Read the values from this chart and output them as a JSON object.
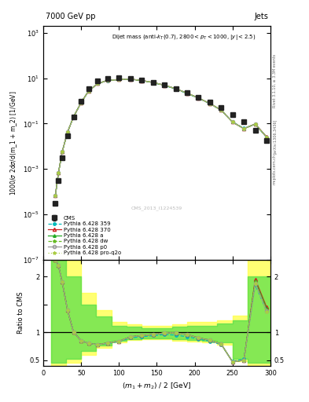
{
  "title_left": "7000 GeV pp",
  "title_right": "Jets",
  "annotation": "Dijet mass (anti-k_{T}(0.7), 2800<p_{T}<1000, |y|<2.5)",
  "xlabel": "(m_1 + m_2) / 2 [GeV]",
  "ylabel_top": "1000/σ 2dσ/d(m_1 + m_2) [1/GeV]",
  "ylabel_bottom": "Ratio to CMS",
  "watermark": "CMS_2013_I1224539",
  "xlim": [
    0,
    300
  ],
  "color_cms": "#222222",
  "color_p359": "#00bbbb",
  "color_p370": "#cc2222",
  "color_pa": "#22aa22",
  "color_pdw": "#66bb22",
  "color_pp0": "#999999",
  "color_pproq2o": "#aacc44",
  "legend_labels": [
    "CMS",
    "Pythia 6.428 359",
    "Pythia 6.428 370",
    "Pythia 6.428 a",
    "Pythia 6.428 dw",
    "Pythia 6.428 p0",
    "Pythia 6.428 pro-q2o"
  ],
  "x": [
    16,
    20,
    25,
    32,
    40,
    50,
    60,
    72,
    85,
    100,
    115,
    130,
    145,
    160,
    175,
    190,
    205,
    220,
    235,
    250,
    265,
    280,
    295
  ],
  "cms_y": [
    3e-05,
    0.0003,
    0.003,
    0.03,
    0.2,
    1.0,
    3.5,
    7.5,
    10.0,
    10.5,
    10.0,
    8.5,
    6.8,
    5.0,
    3.5,
    2.3,
    1.5,
    0.9,
    0.5,
    0.25,
    0.12,
    0.05,
    0.018
  ],
  "ratio_p359": [
    2.3,
    2.2,
    1.9,
    1.4,
    1.0,
    0.85,
    0.8,
    0.78,
    0.8,
    0.83,
    0.9,
    0.92,
    0.94,
    0.96,
    0.95,
    0.92,
    0.88,
    0.84,
    0.78,
    0.48,
    0.52,
    1.85,
    1.38
  ],
  "ratio_p370": [
    2.3,
    2.2,
    1.9,
    1.4,
    1.0,
    0.85,
    0.8,
    0.78,
    0.81,
    0.84,
    0.92,
    0.94,
    0.96,
    0.99,
    0.99,
    0.96,
    0.9,
    0.86,
    0.79,
    0.47,
    0.5,
    1.95,
    1.45
  ],
  "ratio_pa": [
    2.3,
    2.2,
    1.9,
    1.4,
    1.0,
    0.85,
    0.8,
    0.78,
    0.81,
    0.84,
    0.92,
    0.94,
    0.96,
    0.99,
    0.99,
    0.96,
    0.9,
    0.86,
    0.79,
    0.47,
    0.5,
    1.92,
    1.42
  ],
  "ratio_pdw": [
    2.3,
    2.2,
    1.9,
    1.4,
    1.0,
    0.85,
    0.8,
    0.78,
    0.81,
    0.84,
    0.92,
    0.94,
    0.96,
    0.99,
    0.99,
    0.96,
    0.9,
    0.86,
    0.79,
    0.47,
    0.5,
    1.9,
    1.4
  ],
  "ratio_pp0": [
    2.3,
    2.2,
    1.9,
    1.4,
    1.0,
    0.85,
    0.8,
    0.78,
    0.81,
    0.84,
    0.92,
    0.94,
    0.96,
    0.99,
    0.99,
    0.96,
    0.9,
    0.86,
    0.79,
    0.47,
    0.5,
    1.88,
    1.38
  ],
  "ratio_pproq2o": [
    2.3,
    2.2,
    1.9,
    1.4,
    1.0,
    0.85,
    0.8,
    0.78,
    0.81,
    0.84,
    0.92,
    0.94,
    0.96,
    0.99,
    0.99,
    0.96,
    0.9,
    0.86,
    0.79,
    0.47,
    0.5,
    1.87,
    1.37
  ],
  "band_x_edges": [
    10,
    30,
    50,
    70,
    90,
    110,
    130,
    150,
    170,
    190,
    210,
    230,
    250,
    270,
    300
  ],
  "yellow_hi": [
    2.5,
    2.3,
    1.7,
    1.4,
    1.18,
    1.14,
    1.12,
    1.12,
    1.15,
    1.18,
    1.18,
    1.22,
    1.3,
    2.3,
    2.5
  ],
  "yellow_lo": [
    0.4,
    0.45,
    0.6,
    0.72,
    0.82,
    0.86,
    0.87,
    0.87,
    0.85,
    0.83,
    0.82,
    0.78,
    0.48,
    0.4,
    0.4
  ],
  "green_hi": [
    2.3,
    2.0,
    1.5,
    1.28,
    1.12,
    1.1,
    1.08,
    1.08,
    1.1,
    1.12,
    1.12,
    1.16,
    1.22,
    2.0,
    2.3
  ],
  "green_lo": [
    0.45,
    0.52,
    0.66,
    0.76,
    0.85,
    0.88,
    0.89,
    0.89,
    0.87,
    0.86,
    0.85,
    0.82,
    0.52,
    0.45,
    0.45
  ]
}
